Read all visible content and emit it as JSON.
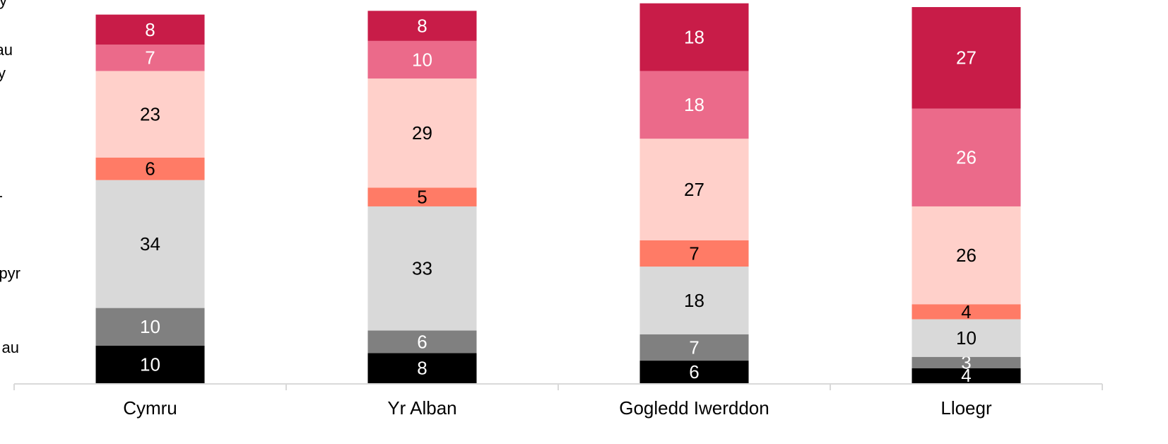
{
  "chart_data": {
    "type": "bar",
    "stacked": true,
    "categories": [
      "Cymru",
      "Yr Alban",
      "Gogledd Iwerddon",
      "Lloegr"
    ],
    "series": [
      {
        "color": "#000000",
        "label_color": "#ffffff",
        "values": [
          10,
          8,
          6,
          4
        ]
      },
      {
        "color": "#808080",
        "label_color": "#ffffff",
        "values": [
          10,
          6,
          7,
          3
        ]
      },
      {
        "color": "#d9d9d9",
        "label_color": "#000000",
        "values": [
          34,
          33,
          18,
          10
        ]
      },
      {
        "color": "#ff7b66",
        "label_color": "#000000",
        "values": [
          6,
          5,
          7,
          4
        ]
      },
      {
        "color": "#ffd0ca",
        "label_color": "#000000",
        "values": [
          23,
          29,
          27,
          26
        ]
      },
      {
        "color": "#eb6a8a",
        "label_color": "#ffffff",
        "values": [
          7,
          10,
          18,
          26
        ]
      },
      {
        "color": "#c81c48",
        "label_color": "#ffffff",
        "values": [
          8,
          8,
          18,
          27
        ]
      }
    ],
    "ylim": [
      0,
      100
    ],
    "annotations": [
      "y",
      "au",
      "y",
      "-",
      "pyr",
      "au"
    ]
  }
}
